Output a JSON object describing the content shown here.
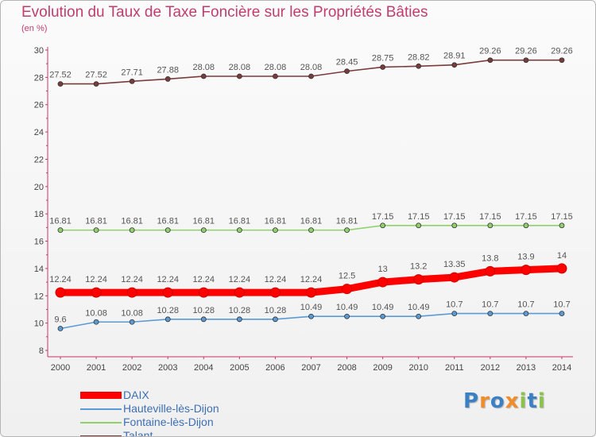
{
  "chart_data": {
    "type": "line",
    "title": "Evolution du Taux de Taxe Foncière sur les Propriétés Bâties",
    "subtitle": "(en %)",
    "x": [
      "2000",
      "2001",
      "2002",
      "2003",
      "2004",
      "2005",
      "2006",
      "2007",
      "2008",
      "2009",
      "2010",
      "2011",
      "2012",
      "2013",
      "2014"
    ],
    "ylim": [
      8,
      30
    ],
    "yticks": [
      8,
      10,
      12,
      14,
      16,
      18,
      20,
      22,
      24,
      26,
      28,
      30
    ],
    "grid": false,
    "series": [
      {
        "name": "DAIX",
        "color": "#ff0000",
        "values": [
          12.24,
          12.24,
          12.24,
          12.24,
          12.24,
          12.24,
          12.24,
          12.24,
          12.5,
          13,
          13.2,
          13.35,
          13.8,
          13.9,
          14
        ],
        "labels": [
          "12.24",
          "12.24",
          "12.24",
          "12.24",
          "12.24",
          "12.24",
          "12.24",
          "12.24",
          "12.5",
          "13",
          "13.2",
          "13.35",
          "13.8",
          "13.9",
          "14"
        ]
      },
      {
        "name": "Hauteville-lès-Dijon",
        "color": "#5b9bd5",
        "values": [
          9.6,
          10.08,
          10.08,
          10.28,
          10.28,
          10.28,
          10.28,
          10.49,
          10.49,
          10.49,
          10.49,
          10.7,
          10.7,
          10.7,
          10.7
        ],
        "labels": [
          "9.6",
          "10.08",
          "10.08",
          "10.28",
          "10.28",
          "10.28",
          "10.28",
          "10.49",
          "10.49",
          "10.49",
          "10.49",
          "10.7",
          "10.7",
          "10.7",
          "10.7"
        ]
      },
      {
        "name": "Fontaine-lès-Dijon",
        "color": "#8fd16b",
        "values": [
          16.81,
          16.81,
          16.81,
          16.81,
          16.81,
          16.81,
          16.81,
          16.81,
          16.81,
          17.15,
          17.15,
          17.15,
          17.15,
          17.15,
          17.15
        ],
        "labels": [
          "16.81",
          "16.81",
          "16.81",
          "16.81",
          "16.81",
          "16.81",
          "16.81",
          "16.81",
          "16.81",
          "17.15",
          "17.15",
          "17.15",
          "17.15",
          "17.15",
          "17.15"
        ]
      },
      {
        "name": "Talant",
        "color": "#7a3b3b",
        "values": [
          27.52,
          27.52,
          27.71,
          27.88,
          28.08,
          28.08,
          28.08,
          28.08,
          28.45,
          28.75,
          28.82,
          28.91,
          29.26,
          29.26,
          29.26
        ],
        "labels": [
          "27.52",
          "27.52",
          "27.71",
          "27.88",
          "28.08",
          "28.08",
          "28.08",
          "28.08",
          "28.45",
          "28.75",
          "28.82",
          "28.91",
          "29.26",
          "29.26",
          "29.26"
        ]
      }
    ],
    "legend": [
      "DAIX",
      "Hauteville-lès-Dijon",
      "Fontaine-lès-Dijon",
      "Talant"
    ],
    "legend_position": "bottom-left"
  },
  "logo": {
    "letters": [
      "P",
      "r",
      "o",
      "x",
      "i",
      "t",
      "i"
    ],
    "colors": [
      "#3b7fc4",
      "#f28c28",
      "#3b7fc4",
      "#f28c28",
      "#8bc34a",
      "#3b7fc4",
      "#8bc34a"
    ]
  }
}
